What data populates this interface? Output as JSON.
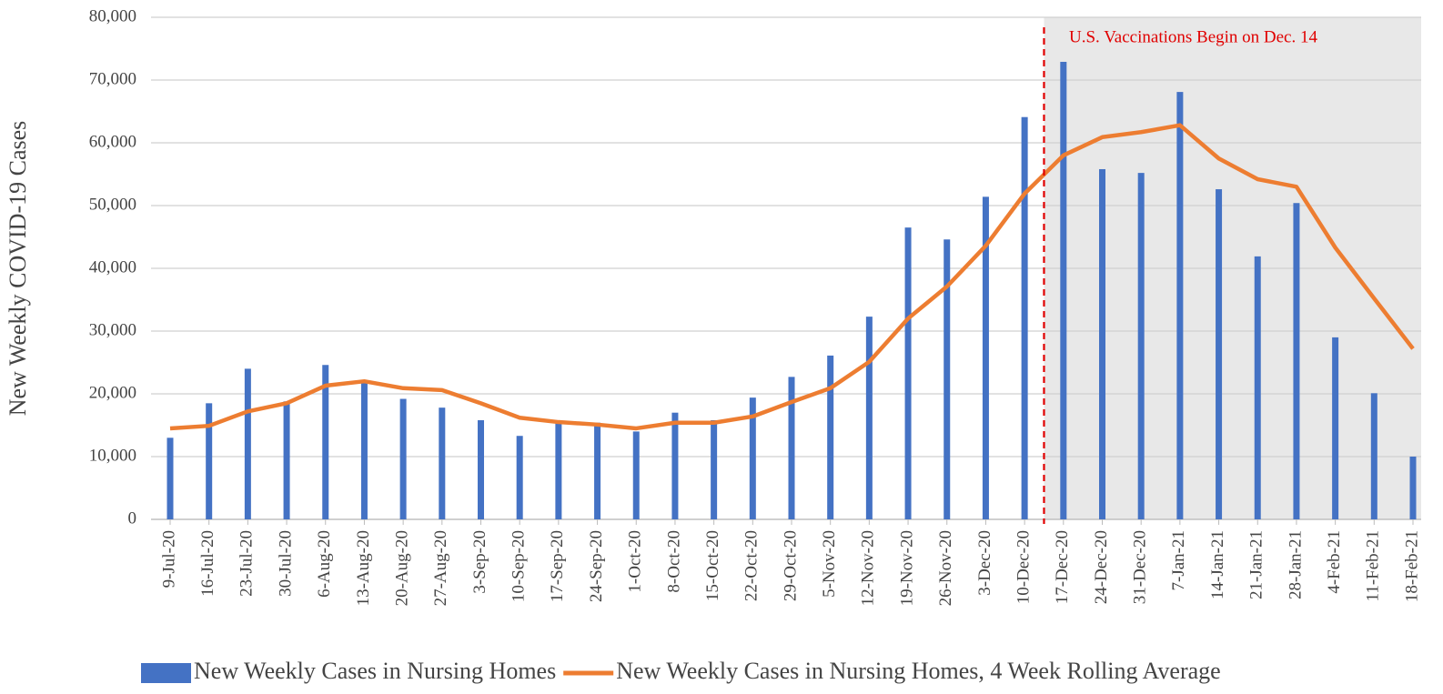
{
  "chart_data": {
    "type": "bar-line",
    "y_axis_label": "New Weekly COVID-19 Cases",
    "annotation": "U.S. Vaccinations Begin on Dec. 14",
    "categories": [
      "9-Jul-20",
      "16-Jul-20",
      "23-Jul-20",
      "30-Jul-20",
      "6-Aug-20",
      "13-Aug-20",
      "20-Aug-20",
      "27-Aug-20",
      "3-Sep-20",
      "10-Sep-20",
      "17-Sep-20",
      "24-Sep-20",
      "1-Oct-20",
      "8-Oct-20",
      "15-Oct-20",
      "22-Oct-20",
      "29-Oct-20",
      "5-Nov-20",
      "12-Nov-20",
      "19-Nov-20",
      "26-Nov-20",
      "3-Dec-20",
      "10-Dec-20",
      "17-Dec-20",
      "24-Dec-20",
      "31-Dec-20",
      "7-Jan-21",
      "14-Jan-21",
      "21-Jan-21",
      "28-Jan-21",
      "4-Feb-21",
      "11-Feb-21",
      "18-Feb-21"
    ],
    "series": [
      {
        "name": "New Weekly Cases in Nursing Homes",
        "type": "bar",
        "color": "#4472c4",
        "values": [
          13000,
          18500,
          24000,
          18800,
          24600,
          22000,
          19200,
          17800,
          15800,
          13300,
          15400,
          15400,
          14000,
          17000,
          15800,
          19400,
          22700,
          26100,
          32300,
          46500,
          44600,
          51400,
          64100,
          72900,
          55800,
          55200,
          68100,
          52600,
          41900,
          50400,
          29000,
          20100,
          10000
        ]
      },
      {
        "name": "New Weekly Cases in Nursing Homes, 4 Week Rolling Average",
        "type": "line",
        "color": "#ed7d31",
        "values": [
          14500,
          14900,
          17200,
          18500,
          21300,
          22000,
          20900,
          20600,
          18500,
          16200,
          15500,
          15100,
          14500,
          15400,
          15400,
          16400,
          18700,
          20900,
          25100,
          32000,
          37100,
          43600,
          51900,
          58000,
          60900,
          61700,
          62800,
          57500,
          54200,
          53000,
          43300,
          35200,
          27200
        ]
      }
    ],
    "ylim": [
      0,
      80000
    ],
    "yticks": [
      0,
      {
        "value": 10000,
        "label": "10,000"
      },
      {
        "value": 20000,
        "label": "20,000"
      },
      {
        "value": 30000,
        "label": "30,000"
      },
      {
        "value": 40000,
        "label": "40,000"
      },
      {
        "value": 50000,
        "label": "50,000"
      },
      {
        "value": 60000,
        "label": "60,000"
      },
      {
        "value": 70000,
        "label": "70,000"
      },
      {
        "value": 80000,
        "label": "80,000"
      }
    ],
    "grid": true,
    "annotation_color": "#e00000",
    "legend": "bottom"
  }
}
